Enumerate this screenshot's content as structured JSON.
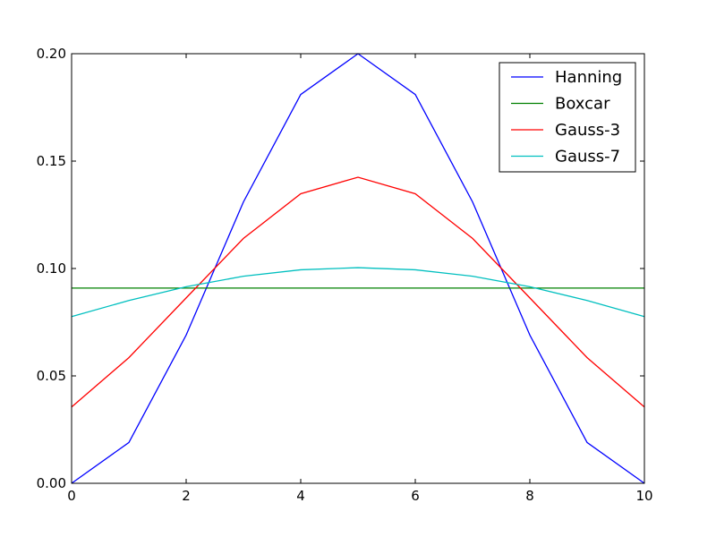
{
  "chart_data": {
    "type": "line",
    "title": "",
    "xlabel": "",
    "ylabel": "",
    "x": [
      0,
      1,
      2,
      3,
      4,
      5,
      6,
      7,
      8,
      9,
      10
    ],
    "xlim": [
      0,
      10
    ],
    "ylim": [
      0.0,
      0.2
    ],
    "xticks": [
      0,
      2,
      4,
      6,
      8,
      10
    ],
    "xtick_labels": [
      "0",
      "2",
      "4",
      "6",
      "8",
      "10"
    ],
    "yticks": [
      0.0,
      0.05,
      0.1,
      0.15,
      0.2
    ],
    "ytick_labels": [
      "0.00",
      "0.05",
      "0.10",
      "0.15",
      "0.20"
    ],
    "grid": false,
    "legend_position": "top-right",
    "series": [
      {
        "name": "Hanning",
        "color": "#0000ff",
        "values": [
          0.0,
          0.019,
          0.069,
          0.131,
          0.181,
          0.2,
          0.181,
          0.131,
          0.069,
          0.019,
          0.0
        ]
      },
      {
        "name": "Boxcar",
        "color": "#008000",
        "values": [
          0.0909,
          0.0909,
          0.0909,
          0.0909,
          0.0909,
          0.0909,
          0.0909,
          0.0909,
          0.0909,
          0.0909,
          0.0909
        ]
      },
      {
        "name": "Gauss-3",
        "color": "#ff0000",
        "values": [
          0.0355,
          0.0585,
          0.0863,
          0.114,
          0.1348,
          0.1425,
          0.1348,
          0.114,
          0.0863,
          0.0585,
          0.0355
        ]
      },
      {
        "name": "Gauss-7",
        "color": "#00bfbf",
        "values": [
          0.0776,
          0.0851,
          0.0915,
          0.0964,
          0.0994,
          0.1004,
          0.0994,
          0.0964,
          0.0915,
          0.0851,
          0.0776
        ]
      }
    ]
  }
}
